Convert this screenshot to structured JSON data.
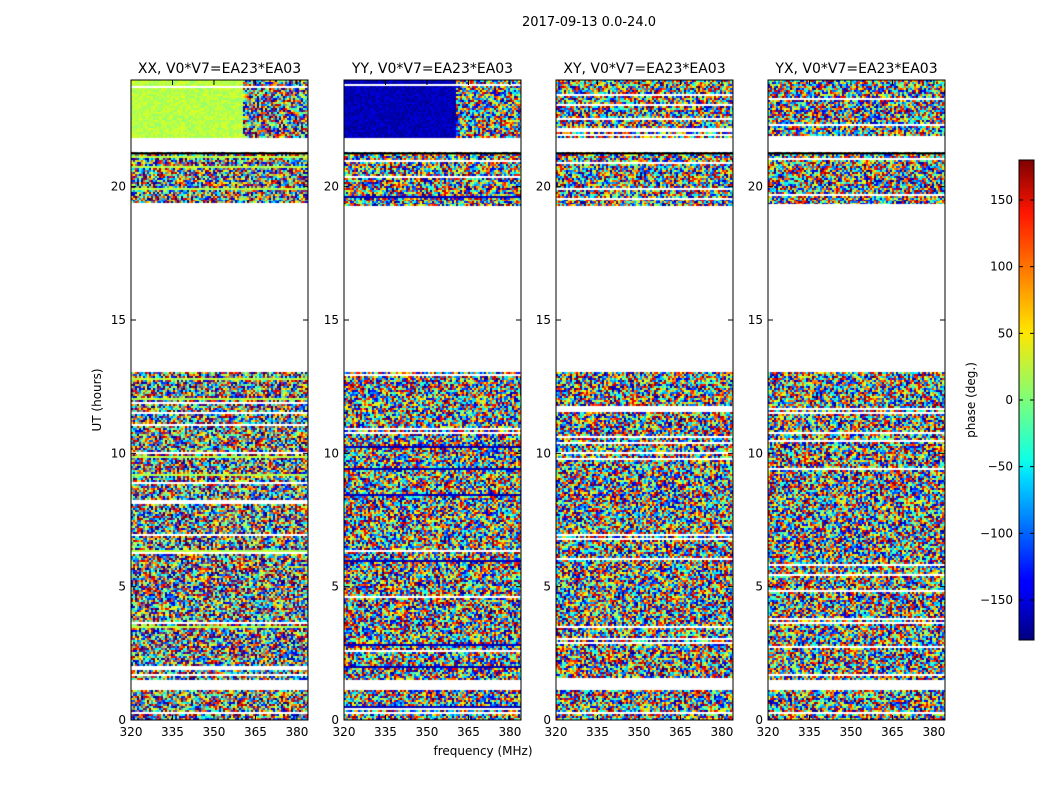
{
  "figure": {
    "suptitle": "2017-09-13 0.0-24.0"
  },
  "chart_data": {
    "type": "heatmap",
    "xlabel": "frequency (MHz)",
    "ylabel": "UT (hours)",
    "xlim": [
      320,
      384
    ],
    "ylim": [
      0,
      24
    ],
    "xticks": [
      320,
      335,
      350,
      365,
      380
    ],
    "yticks": [
      0,
      5,
      10,
      15,
      20
    ],
    "empty_ut_range": [
      13.1,
      19.35
    ],
    "thin_data_line_ut": 19.45,
    "data_gap_ut_ranges": [
      [
        21.35,
        21.85
      ],
      [
        1.2,
        1.55
      ],
      [
        0.25,
        0.35
      ]
    ],
    "panels": [
      {
        "title": "XX, V0*V7=EA23*EA03",
        "coherent_phase_deg": 20,
        "coherent_band_ut": [
          21.85,
          24.0
        ]
      },
      {
        "title": "YY, V0*V7=EA23*EA03",
        "coherent_phase_deg": -160,
        "coherent_band_ut": [
          21.85,
          24.0
        ]
      },
      {
        "title": "XY, V0*V7=EA23*EA03",
        "coherent_phase_deg": null,
        "coherent_band_ut": null
      },
      {
        "title": "YX, V0*V7=EA23*EA03",
        "coherent_phase_deg": null,
        "coherent_band_ut": null
      }
    ],
    "colorbar": {
      "label": "phase (deg.)",
      "range": [
        -180,
        180
      ],
      "ticks": [
        150,
        100,
        50,
        0,
        -50,
        -100,
        -150
      ],
      "tick_labels": [
        "150",
        "100",
        "50",
        "0",
        "−50",
        "−100",
        "−150"
      ],
      "colormap": "jet"
    }
  }
}
